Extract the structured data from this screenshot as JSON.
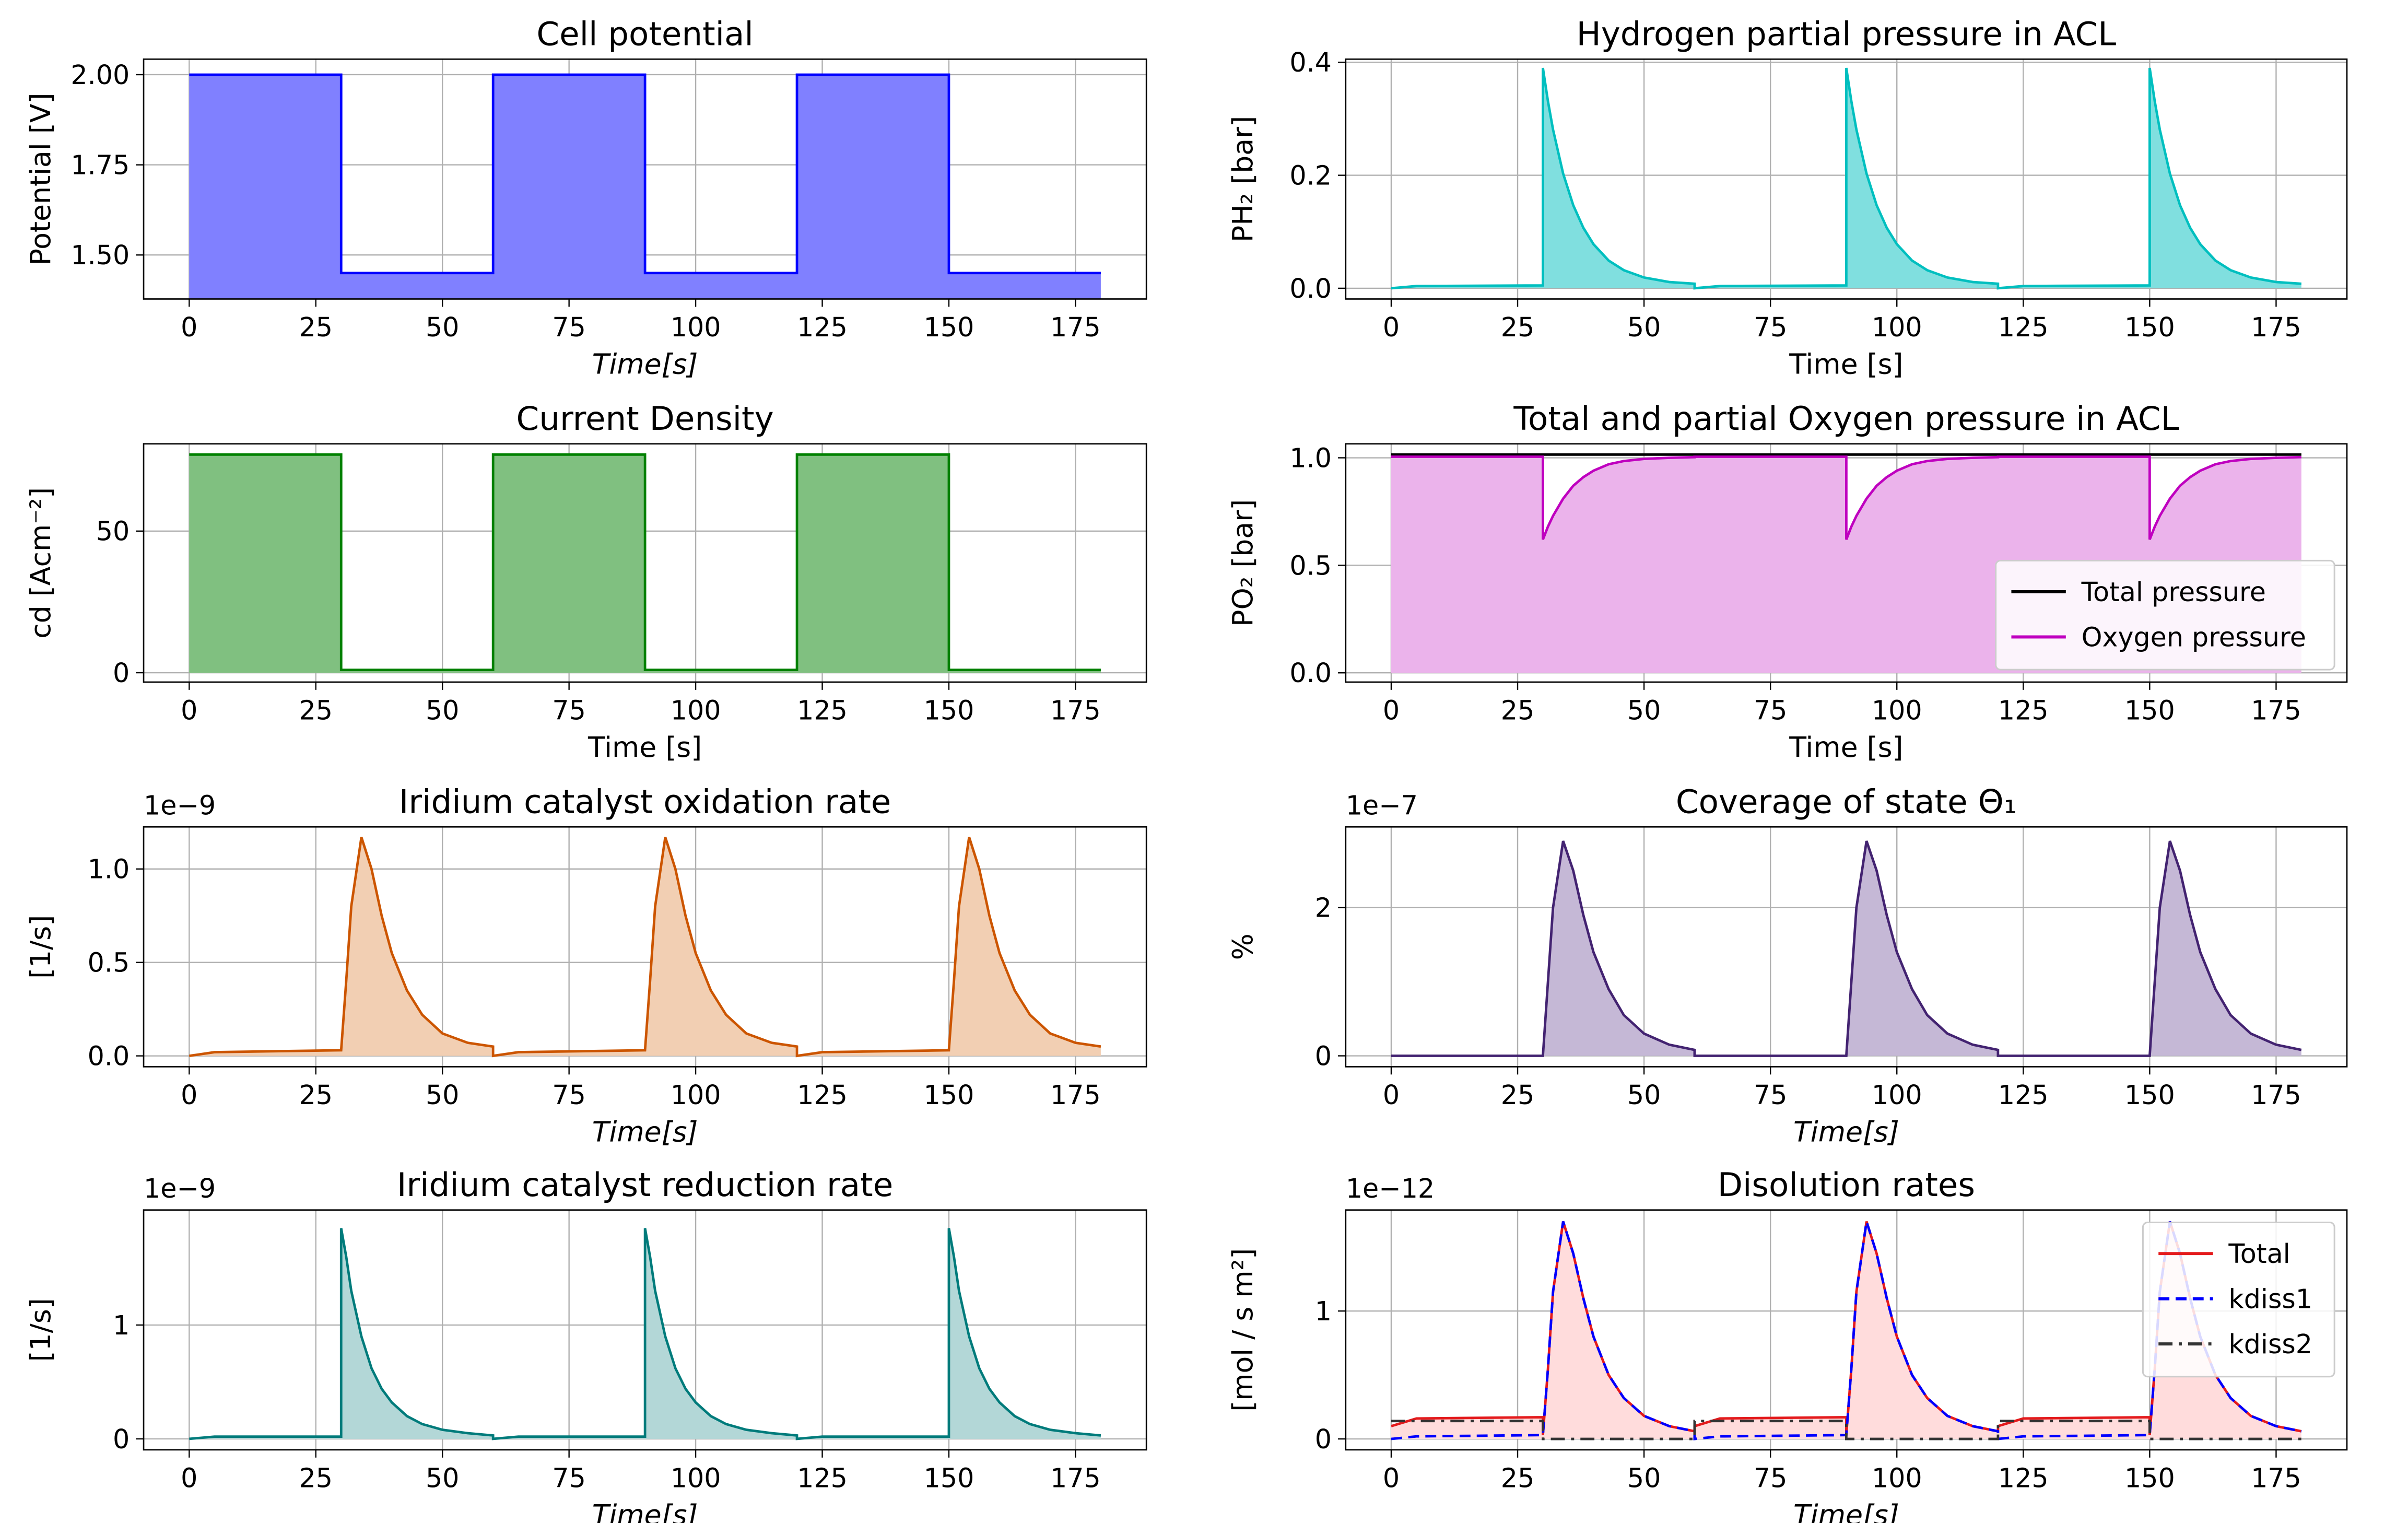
{
  "chart_data": [
    {
      "type": "line",
      "title": "Cell potential",
      "xlabel": "Time[s]",
      "ylabel": "Potential [V]",
      "x": [
        0,
        30,
        30,
        60,
        60,
        90,
        90,
        120,
        120,
        150,
        150,
        180
      ],
      "series": [
        {
          "color": "#0000ff",
          "fill": "#8080ff",
          "values": [
            2,
            2,
            1.45,
            1.45,
            2,
            2,
            1.45,
            1.45,
            2,
            2,
            1.45,
            1.45
          ]
        }
      ],
      "xlim": [
        -9,
        189
      ],
      "xticks": [
        0,
        25,
        50,
        75,
        100,
        125,
        150,
        175
      ],
      "ylim": [
        1.378,
        2.043
      ],
      "yticks": [
        {
          "value": 1.5,
          "label": "1.50"
        },
        {
          "value": 1.75,
          "label": "1.75"
        },
        {
          "value": 2,
          "label": "2.00"
        }
      ],
      "grid": true
    },
    {
      "type": "line",
      "title": "Hydrogen partial pressure in ACL",
      "xlabel": "Time [s]",
      "ylabel": "PH₂ [bar]",
      "x": [
        0,
        5,
        30,
        30,
        31,
        32,
        34,
        36,
        38,
        40,
        43,
        46,
        50,
        55,
        60,
        60,
        65,
        90,
        90,
        91,
        92,
        94,
        96,
        98,
        100,
        103,
        106,
        110,
        115,
        120,
        120,
        125,
        150,
        150,
        151,
        152,
        154,
        156,
        158,
        160,
        163,
        166,
        170,
        175,
        180
      ],
      "series": [
        {
          "color": "#00bfbf",
          "fill": "#80dfdf",
          "values": [
            0,
            0.004,
            0.005,
            0.39,
            0.331,
            0.281,
            0.203,
            0.147,
            0.107,
            0.078,
            0.049,
            0.032,
            0.019,
            0.011,
            0.008,
            0,
            0.004,
            0.005,
            0.39,
            0.331,
            0.281,
            0.203,
            0.147,
            0.107,
            0.078,
            0.049,
            0.032,
            0.019,
            0.011,
            0.008,
            0,
            0.004,
            0.005,
            0.39,
            0.331,
            0.281,
            0.203,
            0.147,
            0.107,
            0.078,
            0.049,
            0.032,
            0.019,
            0.011,
            0.008
          ]
        }
      ],
      "xlim": [
        -9,
        189
      ],
      "xticks": [
        0,
        25,
        50,
        75,
        100,
        125,
        150,
        175
      ],
      "ylim": [
        -0.019,
        0.4055
      ],
      "yticks": [
        {
          "value": 0,
          "label": "0.0"
        },
        {
          "value": 0.2,
          "label": "0.2"
        },
        {
          "value": 0.4,
          "label": "0.4"
        }
      ],
      "grid": true
    },
    {
      "type": "line",
      "title": "Current Density",
      "xlabel": "Time [s]",
      "ylabel": "cd [Acm⁻²]",
      "x": [
        0,
        30,
        30,
        60,
        60,
        90,
        90,
        120,
        120,
        150,
        150,
        180
      ],
      "series": [
        {
          "color": "#008000",
          "fill": "#80c080",
          "values": [
            77,
            77,
            1,
            1,
            77,
            77,
            1,
            1,
            77,
            77,
            1,
            1
          ]
        }
      ],
      "xlim": [
        -9,
        189
      ],
      "xticks": [
        0,
        25,
        50,
        75,
        100,
        125,
        150,
        175
      ],
      "ylim": [
        -3.3,
        80.8
      ],
      "yticks": [
        0,
        50
      ],
      "grid": true
    },
    {
      "type": "line",
      "title": "Total and partial Oxygen pressure in ACL",
      "xlabel": "Time [s]",
      "ylabel": "PO₂ [bar]",
      "x": [
        0,
        5,
        30,
        30,
        31,
        32,
        34,
        36,
        38,
        40,
        43,
        46,
        50,
        55,
        60,
        60,
        65,
        90,
        90,
        91,
        92,
        94,
        96,
        98,
        100,
        103,
        106,
        110,
        115,
        120,
        120,
        125,
        150,
        150,
        151,
        152,
        154,
        156,
        158,
        160,
        163,
        166,
        170,
        175,
        180
      ],
      "series": [
        {
          "name": "Total pressure",
          "color": "#000000",
          "values": [
            1.015,
            1.015,
            1.015,
            1.015,
            1.015,
            1.015,
            1.015,
            1.015,
            1.015,
            1.015,
            1.015,
            1.015,
            1.015,
            1.015,
            1.015,
            1.015,
            1.015,
            1.015,
            1.015,
            1.015,
            1.015,
            1.015,
            1.015,
            1.015,
            1.015,
            1.015,
            1.015,
            1.015,
            1.015,
            1.015,
            1.015,
            1.015,
            1.015,
            1.015,
            1.015,
            1.015,
            1.015,
            1.015,
            1.015,
            1.015,
            1.015,
            1.015,
            1.015,
            1.015,
            1.015
          ]
        },
        {
          "name": "Oxygen pressure",
          "color": "#bf00bf",
          "fill": "#ebb3eb",
          "values": [
            1.005,
            1.005,
            1.005,
            0.62,
            0.68,
            0.73,
            0.81,
            0.87,
            0.91,
            0.94,
            0.97,
            0.985,
            0.995,
            1.0,
            1.003,
            1.005,
            1.005,
            1.005,
            0.62,
            0.68,
            0.73,
            0.81,
            0.87,
            0.91,
            0.94,
            0.97,
            0.985,
            0.995,
            1.0,
            1.003,
            1.005,
            1.005,
            1.005,
            0.62,
            0.68,
            0.73,
            0.81,
            0.87,
            0.91,
            0.94,
            0.97,
            0.985,
            0.995,
            1.0,
            1.003
          ]
        }
      ],
      "legend": "lower right",
      "xlim": [
        -9,
        189
      ],
      "xticks": [
        0,
        25,
        50,
        75,
        100,
        125,
        150,
        175
      ],
      "ylim": [
        -0.043,
        1.065
      ],
      "yticks": [
        {
          "value": 0,
          "label": "0.0"
        },
        {
          "value": 0.5,
          "label": "0.5"
        },
        {
          "value": 1,
          "label": "1.0"
        }
      ],
      "grid": true
    },
    {
      "type": "line",
      "title": "Iridium catalyst oxidation rate",
      "xlabel": "Time[s]",
      "ylabel": "[1/s]",
      "offset_text": "1e−9",
      "x": [
        0,
        5,
        30,
        30,
        31,
        32,
        34,
        36,
        38,
        40,
        43,
        46,
        50,
        55,
        60,
        60,
        65,
        90,
        90,
        91,
        92,
        94,
        96,
        98,
        100,
        103,
        106,
        110,
        115,
        120,
        120,
        125,
        150,
        150,
        151,
        152,
        154,
        156,
        158,
        160,
        163,
        166,
        170,
        175,
        180
      ],
      "series": [
        {
          "color": "#cc5500",
          "fill": "#f2cfb3",
          "values": [
            0,
            0.02,
            0.03,
            0.03,
            0.4,
            0.8,
            1.17,
            1.0,
            0.75,
            0.55,
            0.35,
            0.22,
            0.12,
            0.07,
            0.05,
            0,
            0.02,
            0.03,
            0.03,
            0.4,
            0.8,
            1.17,
            1.0,
            0.75,
            0.55,
            0.35,
            0.22,
            0.12,
            0.07,
            0.05,
            0,
            0.02,
            0.03,
            0.03,
            0.4,
            0.8,
            1.17,
            1.0,
            0.75,
            0.55,
            0.35,
            0.22,
            0.12,
            0.07,
            0.05
          ]
        }
      ],
      "xlim": [
        -9,
        189
      ],
      "xticks": [
        0,
        25,
        50,
        75,
        100,
        125,
        150,
        175
      ],
      "ylim": [
        -0.058,
        1.225
      ],
      "yticks": [
        {
          "value": 0,
          "label": "0.0"
        },
        {
          "value": 0.5,
          "label": "0.5"
        },
        {
          "value": 1,
          "label": "1.0"
        }
      ],
      "grid": true
    },
    {
      "type": "line",
      "title": "Coverage of state Θ₁",
      "xlabel": "Time[s]",
      "ylabel": "%",
      "offset_text": "1e−7",
      "x": [
        0,
        5,
        30,
        30,
        31,
        32,
        34,
        36,
        38,
        40,
        43,
        46,
        50,
        55,
        60,
        60,
        65,
        90,
        90,
        91,
        92,
        94,
        96,
        98,
        100,
        103,
        106,
        110,
        115,
        120,
        120,
        125,
        150,
        150,
        151,
        152,
        154,
        156,
        158,
        160,
        163,
        166,
        170,
        175,
        180
      ],
      "series": [
        {
          "color": "#432371",
          "fill": "#c5b8d6",
          "values": [
            0,
            0,
            0,
            0,
            1.0,
            2.0,
            2.9,
            2.5,
            1.9,
            1.4,
            0.9,
            0.55,
            0.3,
            0.15,
            0.08,
            0,
            0,
            0,
            0,
            1.0,
            2.0,
            2.9,
            2.5,
            1.9,
            1.4,
            0.9,
            0.55,
            0.3,
            0.15,
            0.08,
            0,
            0,
            0,
            0,
            1.0,
            2.0,
            2.9,
            2.5,
            1.9,
            1.4,
            0.9,
            0.55,
            0.3,
            0.15,
            0.08
          ]
        }
      ],
      "xlim": [
        -9,
        189
      ],
      "xticks": [
        0,
        25,
        50,
        75,
        100,
        125,
        150,
        175
      ],
      "ylim": [
        -0.147,
        3.09
      ],
      "yticks": [
        0,
        2
      ],
      "grid": true
    },
    {
      "type": "line",
      "title": "Iridium catalyst reduction rate",
      "xlabel": "Time[s]",
      "ylabel": "[1/s]",
      "offset_text": "1e−9",
      "x": [
        0,
        5,
        30,
        30,
        31,
        32,
        34,
        36,
        38,
        40,
        43,
        46,
        50,
        55,
        60,
        60,
        65,
        90,
        90,
        91,
        92,
        94,
        96,
        98,
        100,
        103,
        106,
        110,
        115,
        120,
        120,
        125,
        150,
        150,
        151,
        152,
        154,
        156,
        158,
        160,
        163,
        166,
        170,
        175,
        180
      ],
      "series": [
        {
          "color": "#007b7b",
          "fill": "#b3d7d7",
          "values": [
            0,
            0.02,
            0.02,
            1.85,
            1.6,
            1.3,
            0.9,
            0.62,
            0.44,
            0.32,
            0.2,
            0.13,
            0.08,
            0.05,
            0.03,
            0,
            0.02,
            0.02,
            1.85,
            1.6,
            1.3,
            0.9,
            0.62,
            0.44,
            0.32,
            0.2,
            0.13,
            0.08,
            0.05,
            0.03,
            0,
            0.02,
            0.02,
            1.85,
            1.6,
            1.3,
            0.9,
            0.62,
            0.44,
            0.32,
            0.2,
            0.13,
            0.08,
            0.05,
            0.03
          ]
        }
      ],
      "xlim": [
        -9,
        189
      ],
      "xticks": [
        0,
        25,
        50,
        75,
        100,
        125,
        150,
        175
      ],
      "ylim": [
        -0.096,
        2.01
      ],
      "yticks": [
        0,
        1
      ],
      "grid": true
    },
    {
      "type": "line",
      "title": "Disolution rates",
      "xlabel": "Time[s]",
      "ylabel": "[mol / s m²]",
      "offset_text": "1e−12",
      "x": [
        0,
        5,
        30,
        30,
        31,
        32,
        34,
        36,
        38,
        40,
        43,
        46,
        50,
        55,
        60,
        60,
        65,
        90,
        90,
        91,
        92,
        94,
        96,
        98,
        100,
        103,
        106,
        110,
        115,
        120,
        120,
        125,
        150,
        150,
        151,
        152,
        154,
        156,
        158,
        160,
        163,
        166,
        170,
        175,
        180
      ],
      "series": [
        {
          "name": "Total",
          "color": "#e41a1c",
          "fill": "#ffdcdc",
          "values": [
            0.1,
            0.16,
            0.17,
            0.03,
            0.55,
            1.15,
            1.7,
            1.45,
            1.1,
            0.8,
            0.5,
            0.32,
            0.18,
            0.1,
            0.06,
            0.1,
            0.16,
            0.17,
            0.03,
            0.55,
            1.15,
            1.7,
            1.45,
            1.1,
            0.8,
            0.5,
            0.32,
            0.18,
            0.1,
            0.06,
            0.1,
            0.16,
            0.17,
            0.03,
            0.55,
            1.15,
            1.7,
            1.45,
            1.1,
            0.8,
            0.5,
            0.32,
            0.18,
            0.1,
            0.06
          ]
        },
        {
          "name": "kdiss1",
          "color": "#0000ff",
          "linestyle": "dashed",
          "values": [
            0,
            0.02,
            0.03,
            0.03,
            0.55,
            1.15,
            1.7,
            1.45,
            1.1,
            0.8,
            0.5,
            0.32,
            0.18,
            0.1,
            0.06,
            0,
            0.02,
            0.03,
            0.03,
            0.55,
            1.15,
            1.7,
            1.45,
            1.1,
            0.8,
            0.5,
            0.32,
            0.18,
            0.1,
            0.06,
            0,
            0.02,
            0.03,
            0.03,
            0.55,
            1.15,
            1.7,
            1.45,
            1.1,
            0.8,
            0.5,
            0.32,
            0.18,
            0.1,
            0.06
          ]
        },
        {
          "name": "kdiss2",
          "color": "#333333",
          "linestyle": "dashdot",
          "values": [
            0.14,
            0.14,
            0.14,
            0,
            0,
            0,
            0,
            0,
            0,
            0,
            0,
            0,
            0,
            0,
            0,
            0.14,
            0.14,
            0.14,
            0,
            0,
            0,
            0,
            0,
            0,
            0,
            0,
            0,
            0,
            0,
            0,
            0.14,
            0.14,
            0.14,
            0,
            0,
            0,
            0,
            0,
            0,
            0,
            0,
            0,
            0,
            0,
            0
          ]
        }
      ],
      "legend": "upper right",
      "xlim": [
        -9,
        189
      ],
      "xticks": [
        0,
        25,
        50,
        75,
        100,
        125,
        150,
        175
      ],
      "ylim": [
        -0.085,
        1.79
      ],
      "yticks": [
        0,
        1
      ],
      "grid": true
    }
  ]
}
